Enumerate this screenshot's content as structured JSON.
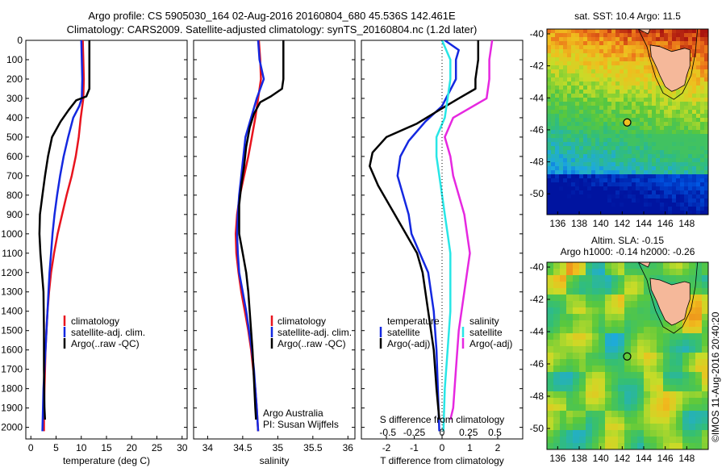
{
  "title": {
    "line1": "Argo profile: CS 5905030_164 02-Aug-2016 20160804_680 45.536S 142.461E",
    "line2": "Climatology: CARS2009. Satellite-adjusted climatology: synTS_20160804.nc (1.2d later)"
  },
  "colors": {
    "climatology": "#e8141e",
    "satellite": "#1428e0",
    "argo": "#000000",
    "sat_salinity": "#28e6e6",
    "argo_salinity": "#e628e0",
    "land": "#f5b89a"
  },
  "depth_axis": {
    "ticks": [
      0,
      100,
      200,
      300,
      400,
      500,
      600,
      700,
      800,
      900,
      1000,
      1100,
      1200,
      1300,
      1400,
      1500,
      1600,
      1700,
      1800,
      1900,
      2000
    ],
    "lim": [
      0,
      2060
    ]
  },
  "chart_data": [
    {
      "type": "line",
      "name": "temperature-profile",
      "xlabel": "temperature (deg C)",
      "xlim": [
        -1,
        31
      ],
      "xticks": [
        0,
        5,
        10,
        15,
        20,
        25,
        30
      ],
      "legend": [
        "climatology",
        "satellite-adj. clim.",
        "Argo(..raw -QC)"
      ],
      "series": [
        {
          "name": "climatology",
          "color_key": "climatology",
          "points": [
            [
              10.3,
              0
            ],
            [
              10.4,
              100
            ],
            [
              10.5,
              200
            ],
            [
              10.4,
              300
            ],
            [
              9.9,
              400
            ],
            [
              9.5,
              500
            ],
            [
              8.9,
              600
            ],
            [
              8.1,
              700
            ],
            [
              7.1,
              800
            ],
            [
              6.2,
              900
            ],
            [
              5.3,
              1000
            ],
            [
              4.6,
              1100
            ],
            [
              4.0,
              1200
            ],
            [
              3.6,
              1300
            ],
            [
              3.3,
              1400
            ],
            [
              3.1,
              1500
            ],
            [
              2.9,
              1600
            ],
            [
              2.8,
              1700
            ],
            [
              2.7,
              1800
            ],
            [
              2.6,
              1900
            ],
            [
              2.6,
              2020
            ]
          ]
        },
        {
          "name": "satellite-adj. clim.",
          "color_key": "satellite",
          "points": [
            [
              10.0,
              0
            ],
            [
              10.1,
              100
            ],
            [
              10.2,
              200
            ],
            [
              10.1,
              300
            ],
            [
              9.6,
              340
            ],
            [
              8.4,
              400
            ],
            [
              7.4,
              500
            ],
            [
              6.5,
              600
            ],
            [
              5.8,
              700
            ],
            [
              5.2,
              800
            ],
            [
              4.7,
              900
            ],
            [
              4.3,
              1000
            ],
            [
              4.0,
              1100
            ],
            [
              3.7,
              1200
            ],
            [
              3.5,
              1300
            ],
            [
              3.3,
              1400
            ],
            [
              3.1,
              1500
            ],
            [
              2.9,
              1600
            ],
            [
              2.7,
              1700
            ],
            [
              2.5,
              1800
            ],
            [
              2.4,
              1900
            ],
            [
              2.3,
              2020
            ]
          ]
        },
        {
          "name": "Argo(..raw -QC)",
          "color_key": "argo",
          "points": [
            [
              11.6,
              0
            ],
            [
              11.6,
              100
            ],
            [
              11.6,
              200
            ],
            [
              11.6,
              250
            ],
            [
              11.0,
              290
            ],
            [
              9.0,
              310
            ],
            [
              7.5,
              360
            ],
            [
              5.9,
              420
            ],
            [
              4.2,
              500
            ],
            [
              3.4,
              600
            ],
            [
              2.8,
              700
            ],
            [
              2.3,
              800
            ],
            [
              1.8,
              900
            ],
            [
              1.7,
              1000
            ],
            [
              1.9,
              1100
            ],
            [
              2.2,
              1200
            ],
            [
              2.5,
              1300
            ],
            [
              2.6,
              1500
            ],
            [
              2.6,
              1700
            ],
            [
              2.7,
              1900
            ],
            [
              2.8,
              1960
            ]
          ]
        }
      ]
    },
    {
      "type": "line",
      "name": "salinity-profile",
      "xlabel": "salinity",
      "xlim": [
        33.8,
        36.1
      ],
      "xticks": [
        34,
        34.5,
        35,
        35.5,
        36
      ],
      "legend": [
        "climatology",
        "satellite-adj. clim.",
        "Argo(..raw -QC)"
      ],
      "series": [
        {
          "name": "climatology",
          "color_key": "climatology",
          "points": [
            [
              34.73,
              0
            ],
            [
              34.75,
              100
            ],
            [
              34.76,
              200
            ],
            [
              34.72,
              300
            ],
            [
              34.68,
              400
            ],
            [
              34.63,
              500
            ],
            [
              34.58,
              600
            ],
            [
              34.52,
              700
            ],
            [
              34.46,
              800
            ],
            [
              34.42,
              900
            ],
            [
              34.4,
              1000
            ],
            [
              34.41,
              1100
            ],
            [
              34.44,
              1200
            ],
            [
              34.48,
              1300
            ],
            [
              34.53,
              1400
            ],
            [
              34.58,
              1500
            ],
            [
              34.62,
              1600
            ],
            [
              34.65,
              1700
            ],
            [
              34.68,
              1800
            ],
            [
              34.7,
              1900
            ],
            [
              34.72,
              2020
            ]
          ]
        },
        {
          "name": "satellite-adj. clim.",
          "color_key": "satellite",
          "points": [
            [
              34.72,
              0
            ],
            [
              34.74,
              100
            ],
            [
              34.8,
              200
            ],
            [
              34.7,
              300
            ],
            [
              34.62,
              400
            ],
            [
              34.54,
              500
            ],
            [
              34.51,
              600
            ],
            [
              34.48,
              700
            ],
            [
              34.45,
              800
            ],
            [
              34.43,
              900
            ],
            [
              34.42,
              1000
            ],
            [
              34.43,
              1100
            ],
            [
              34.45,
              1200
            ],
            [
              34.5,
              1300
            ],
            [
              34.55,
              1400
            ],
            [
              34.59,
              1500
            ],
            [
              34.63,
              1600
            ],
            [
              34.66,
              1700
            ],
            [
              34.68,
              1800
            ],
            [
              34.7,
              1900
            ],
            [
              34.72,
              2020
            ]
          ]
        },
        {
          "name": "Argo(..raw -QC)",
          "color_key": "argo",
          "points": [
            [
              35.08,
              0
            ],
            [
              35.08,
              100
            ],
            [
              35.08,
              200
            ],
            [
              35.06,
              250
            ],
            [
              34.9,
              290
            ],
            [
              34.75,
              320
            ],
            [
              34.66,
              380
            ],
            [
              34.6,
              450
            ],
            [
              34.55,
              550
            ],
            [
              34.52,
              650
            ],
            [
              34.48,
              750
            ],
            [
              34.45,
              850
            ],
            [
              34.45,
              1000
            ],
            [
              34.5,
              1100
            ],
            [
              34.55,
              1200
            ],
            [
              34.58,
              1300
            ],
            [
              34.61,
              1450
            ],
            [
              34.64,
              1600
            ],
            [
              34.66,
              1750
            ],
            [
              34.68,
              1900
            ],
            [
              34.69,
              1960
            ]
          ]
        }
      ]
    },
    {
      "type": "line",
      "name": "difference-profile",
      "xlabel": "T difference from climatology",
      "top_label": "S difference from climatology",
      "xlim": [
        -2.9,
        2.9
      ],
      "xticks": [
        -2,
        -1,
        0,
        1,
        2
      ],
      "top_ticks": [
        "-0.5",
        "-0.25",
        "0",
        "0.25",
        "0.5"
      ],
      "legend_headers": [
        "temperature",
        "salinity"
      ],
      "legend_left": [
        "satellite",
        "Argo(-adj)"
      ],
      "legend_right": [
        "satellite",
        "Argo(-adj)"
      ],
      "series": [
        {
          "name": "temperature satellite",
          "color_key": "satellite",
          "points": [
            [
              0.1,
              0
            ],
            [
              0.6,
              50
            ],
            [
              0.5,
              100
            ],
            [
              0.5,
              200
            ],
            [
              0.0,
              340
            ],
            [
              -0.6,
              420
            ],
            [
              -1.2,
              520
            ],
            [
              -1.5,
              600
            ],
            [
              -1.6,
              700
            ],
            [
              -1.4,
              800
            ],
            [
              -1.2,
              900
            ],
            [
              -1.1,
              1000
            ],
            [
              -0.8,
              1100
            ],
            [
              -0.5,
              1200
            ],
            [
              -0.3,
              1400
            ],
            [
              -0.2,
              1600
            ],
            [
              -0.15,
              1800
            ],
            [
              -0.1,
              2020
            ]
          ]
        },
        {
          "name": "temperature Argo(-adj)",
          "color_key": "argo",
          "points": [
            [
              1.3,
              0
            ],
            [
              1.3,
              100
            ],
            [
              1.2,
              200
            ],
            [
              1.2,
              250
            ],
            [
              0.6,
              300
            ],
            [
              -0.1,
              360
            ],
            [
              -0.9,
              430
            ],
            [
              -2.0,
              500
            ],
            [
              -2.5,
              580
            ],
            [
              -2.6,
              650
            ],
            [
              -2.3,
              750
            ],
            [
              -1.7,
              900
            ],
            [
              -1.3,
              1000
            ],
            [
              -0.9,
              1100
            ],
            [
              -0.7,
              1200
            ],
            [
              -0.5,
              1400
            ],
            [
              -0.3,
              1600
            ],
            [
              -0.2,
              1800
            ],
            [
              -0.1,
              1960
            ]
          ]
        },
        {
          "name": "salinity satellite",
          "color_key": "sat_salinity",
          "points": [
            [
              0.0,
              0
            ],
            [
              0.3,
              100
            ],
            [
              0.3,
              200
            ],
            [
              0.2,
              300
            ],
            [
              0.1,
              400
            ],
            [
              -0.2,
              500
            ],
            [
              -0.2,
              600
            ],
            [
              -0.1,
              700
            ],
            [
              0.0,
              800
            ],
            [
              0.1,
              900
            ],
            [
              0.2,
              1000
            ],
            [
              0.3,
              1100
            ],
            [
              0.3,
              1200
            ],
            [
              0.3,
              1400
            ],
            [
              0.2,
              1600
            ],
            [
              0.1,
              1800
            ],
            [
              0.05,
              2020
            ]
          ]
        },
        {
          "name": "salinity Argo(-adj)",
          "color_key": "argo_salinity",
          "points": [
            [
              1.8,
              0
            ],
            [
              1.7,
              100
            ],
            [
              1.7,
              200
            ],
            [
              1.6,
              300
            ],
            [
              0.4,
              400
            ],
            [
              0.1,
              500
            ],
            [
              0.3,
              600
            ],
            [
              0.4,
              700
            ],
            [
              0.6,
              800
            ],
            [
              0.8,
              900
            ],
            [
              0.9,
              1000
            ],
            [
              1.0,
              1100
            ],
            [
              0.9,
              1200
            ],
            [
              0.8,
              1300
            ],
            [
              0.6,
              1500
            ],
            [
              0.5,
              1700
            ],
            [
              0.4,
              1900
            ],
            [
              0.3,
              1960
            ]
          ]
        }
      ]
    },
    {
      "type": "heatmap",
      "name": "sst-map",
      "title": "sat. SST: 10.4  Argo: 11.5",
      "xticks": [
        "136",
        "138",
        "140",
        "142",
        "144",
        "146",
        "148"
      ],
      "yticks": [
        "-40",
        "-42",
        "-44",
        "-46",
        "-48",
        "-50"
      ],
      "xlim": [
        135,
        150
      ],
      "ylim": [
        -51.3,
        -39.7
      ],
      "marker": {
        "lon": 142.461,
        "lat": -45.536
      }
    },
    {
      "type": "heatmap",
      "name": "sla-map",
      "title_line1": "Altim. SLA: -0.15",
      "title_line2": "Argo h1000: -0.14  h2000: -0.26",
      "xticks": [
        "136",
        "138",
        "140",
        "142",
        "144",
        "146",
        "148"
      ],
      "yticks": [
        "-40",
        "-42",
        "-44",
        "-46",
        "-48",
        "-50"
      ],
      "xlim": [
        135,
        150
      ],
      "ylim": [
        -51.3,
        -39.7
      ],
      "marker": {
        "lon": 142.461,
        "lat": -45.536
      }
    }
  ],
  "side_label": "©IMOS 11-Aug-2016 20:40:20",
  "credit": {
    "line1": "Argo Australia",
    "line2": "PI: Susan Wijffels"
  }
}
